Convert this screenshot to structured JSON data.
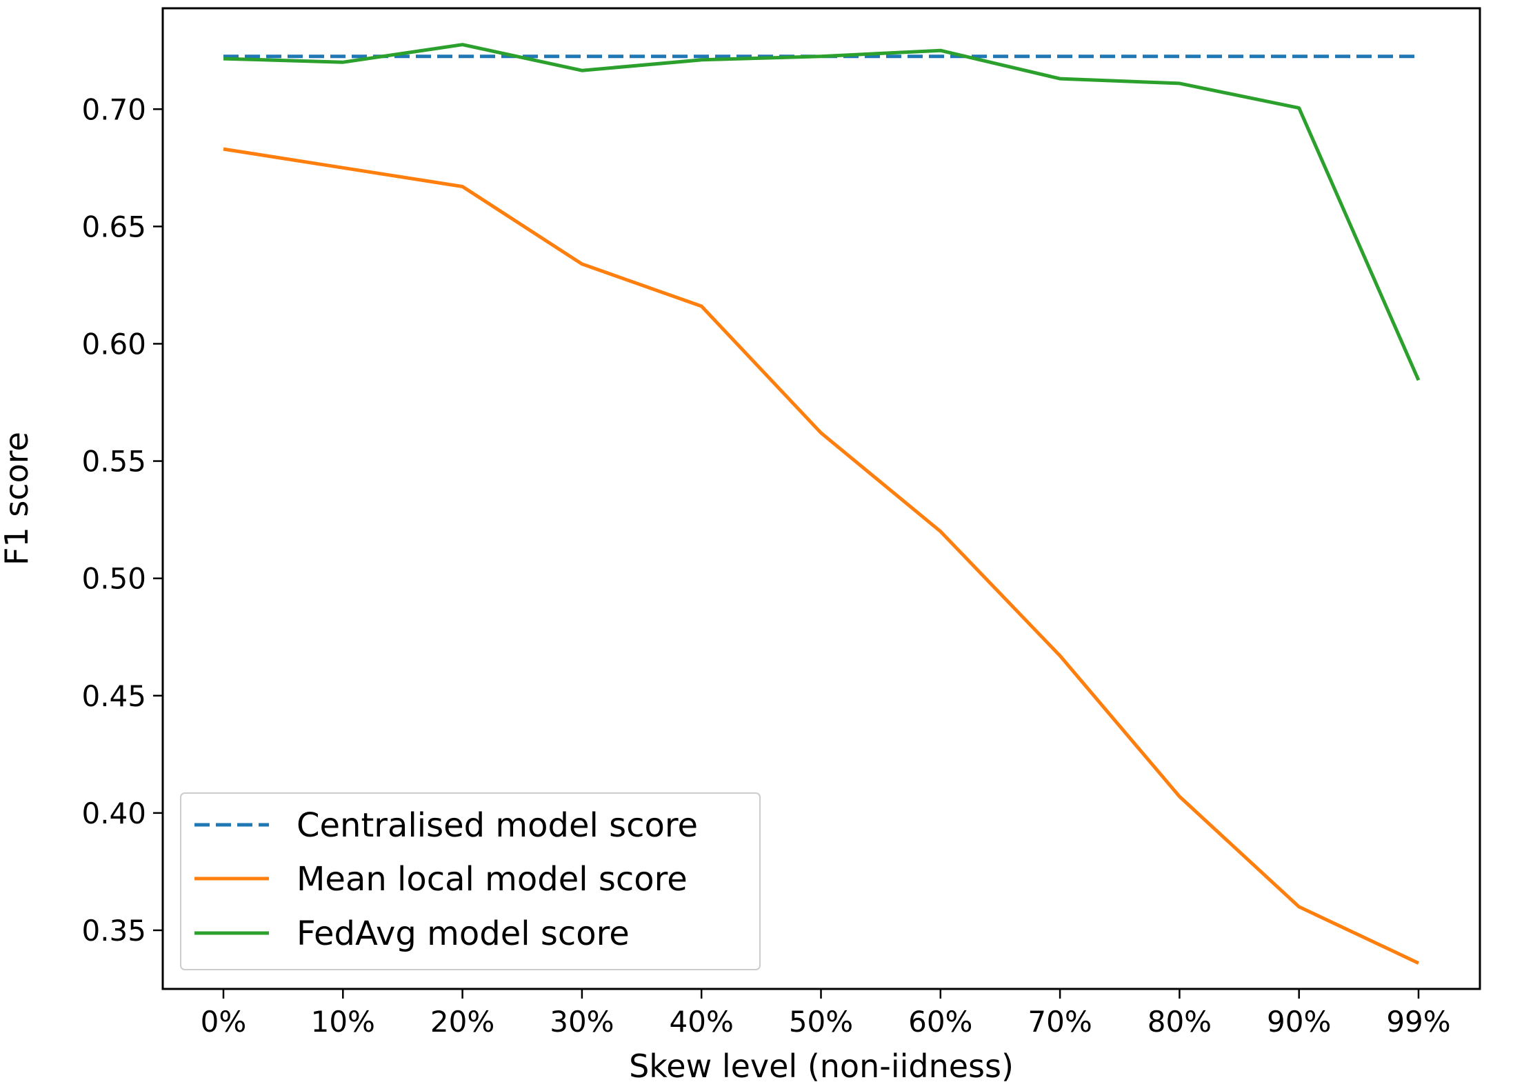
{
  "chart_data": {
    "type": "line",
    "title": "",
    "xlabel": "Skew level (non-iidness)",
    "ylabel": "F1 score",
    "categories": [
      "0%",
      "10%",
      "20%",
      "30%",
      "40%",
      "50%",
      "60%",
      "70%",
      "80%",
      "90%",
      "99%"
    ],
    "ylim": [
      0.325,
      0.743
    ],
    "yticks": [
      0.35,
      0.4,
      0.45,
      0.5,
      0.55,
      0.6,
      0.65,
      0.7
    ],
    "ytick_labels": [
      "0.35",
      "0.40",
      "0.45",
      "0.50",
      "0.55",
      "0.60",
      "0.65",
      "0.70"
    ],
    "grid": false,
    "legend_position": "lower-left",
    "series": [
      {
        "name": "Centralised model score",
        "color": "#1f77b4",
        "style": "dashed",
        "values": [
          0.7225,
          0.7225,
          0.7225,
          0.7225,
          0.7225,
          0.7225,
          0.7225,
          0.7225,
          0.7225,
          0.7225,
          0.7225
        ]
      },
      {
        "name": "Mean local model score",
        "color": "#ff7f0e",
        "style": "solid",
        "values": [
          0.683,
          0.675,
          0.667,
          0.634,
          0.616,
          0.562,
          0.52,
          0.467,
          0.407,
          0.36,
          0.336
        ]
      },
      {
        "name": "FedAvg model score",
        "color": "#2ca02c",
        "style": "solid",
        "values": [
          0.7215,
          0.72,
          0.7275,
          0.7165,
          0.721,
          0.7225,
          0.725,
          0.713,
          0.711,
          0.7005,
          0.5845
        ]
      }
    ]
  }
}
